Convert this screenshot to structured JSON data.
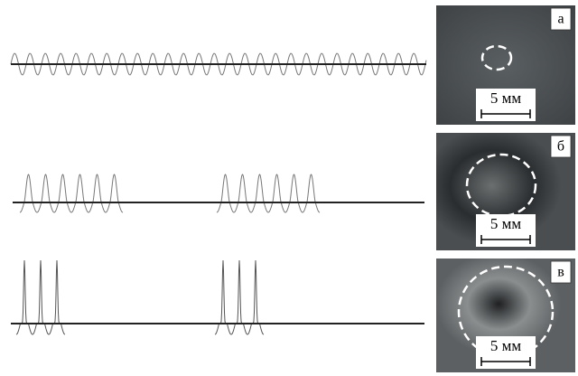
{
  "panels": [
    {
      "label": "а",
      "scale": "5 мм"
    },
    {
      "label": "б",
      "scale": "5 мм"
    },
    {
      "label": "в",
      "scale": "5 мм"
    }
  ]
}
